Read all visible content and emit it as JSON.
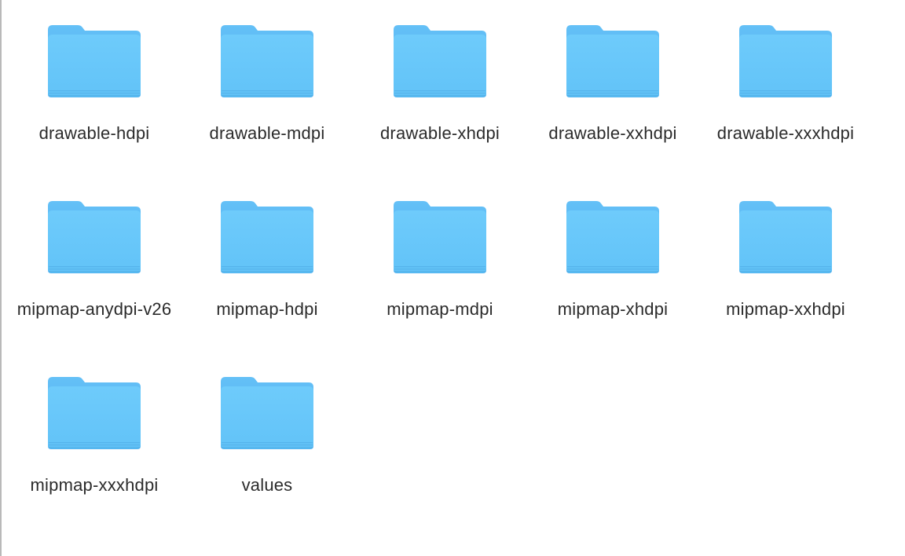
{
  "colors": {
    "folder_back": "#5bbcf5",
    "folder_front_top": "#74cdfb",
    "folder_front_bottom": "#5dbef6",
    "folder_shadow": "#4aa6e0",
    "label_text": "#2b2b2b"
  },
  "folders": [
    {
      "name": "drawable-hdpi",
      "icon": "folder-icon"
    },
    {
      "name": "drawable-mdpi",
      "icon": "folder-icon"
    },
    {
      "name": "drawable-xhdpi",
      "icon": "folder-icon"
    },
    {
      "name": "drawable-xxhdpi",
      "icon": "folder-icon"
    },
    {
      "name": "drawable-xxxhdpi",
      "icon": "folder-icon"
    },
    {
      "name": "mipmap-anydpi-v26",
      "icon": "folder-icon"
    },
    {
      "name": "mipmap-hdpi",
      "icon": "folder-icon"
    },
    {
      "name": "mipmap-mdpi",
      "icon": "folder-icon"
    },
    {
      "name": "mipmap-xhdpi",
      "icon": "folder-icon"
    },
    {
      "name": "mipmap-xxhdpi",
      "icon": "folder-icon"
    },
    {
      "name": "mipmap-xxxhdpi",
      "icon": "folder-icon"
    },
    {
      "name": "values",
      "icon": "folder-icon"
    }
  ]
}
